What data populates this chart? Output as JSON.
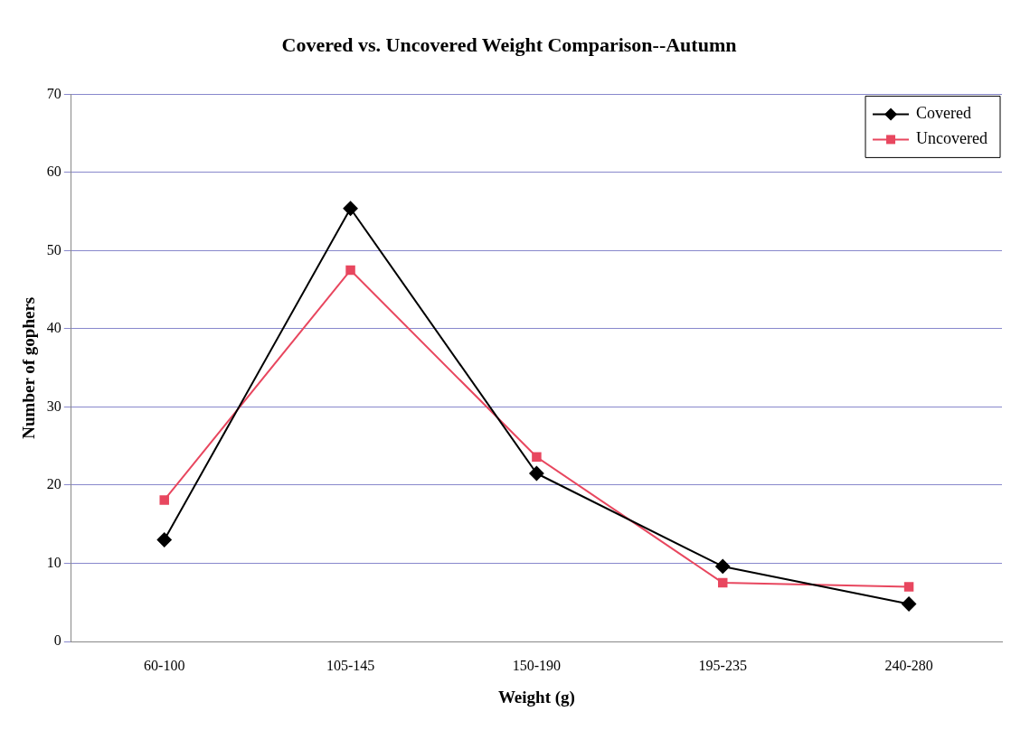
{
  "chart_data": {
    "type": "line",
    "title": "Covered vs. Uncovered Weight Comparison--Autumn",
    "xlabel": "Weight (g)",
    "ylabel": "Number of gophers",
    "categories": [
      "60-100",
      "105-145",
      "150-190",
      "195-235",
      "240-280"
    ],
    "series": [
      {
        "name": "Covered",
        "color": "#000000",
        "marker": "diamond",
        "values": [
          13,
          55.4,
          21.5,
          9.6,
          4.8
        ]
      },
      {
        "name": "Uncovered",
        "color": "#e8475f",
        "marker": "square",
        "values": [
          18.1,
          47.5,
          23.6,
          7.5,
          7
        ]
      }
    ],
    "ylim": [
      0,
      70
    ],
    "yticks": [
      0,
      10,
      20,
      30,
      40,
      50,
      60,
      70
    ],
    "grid": "y",
    "legend": "top right",
    "line_style": "solid"
  }
}
